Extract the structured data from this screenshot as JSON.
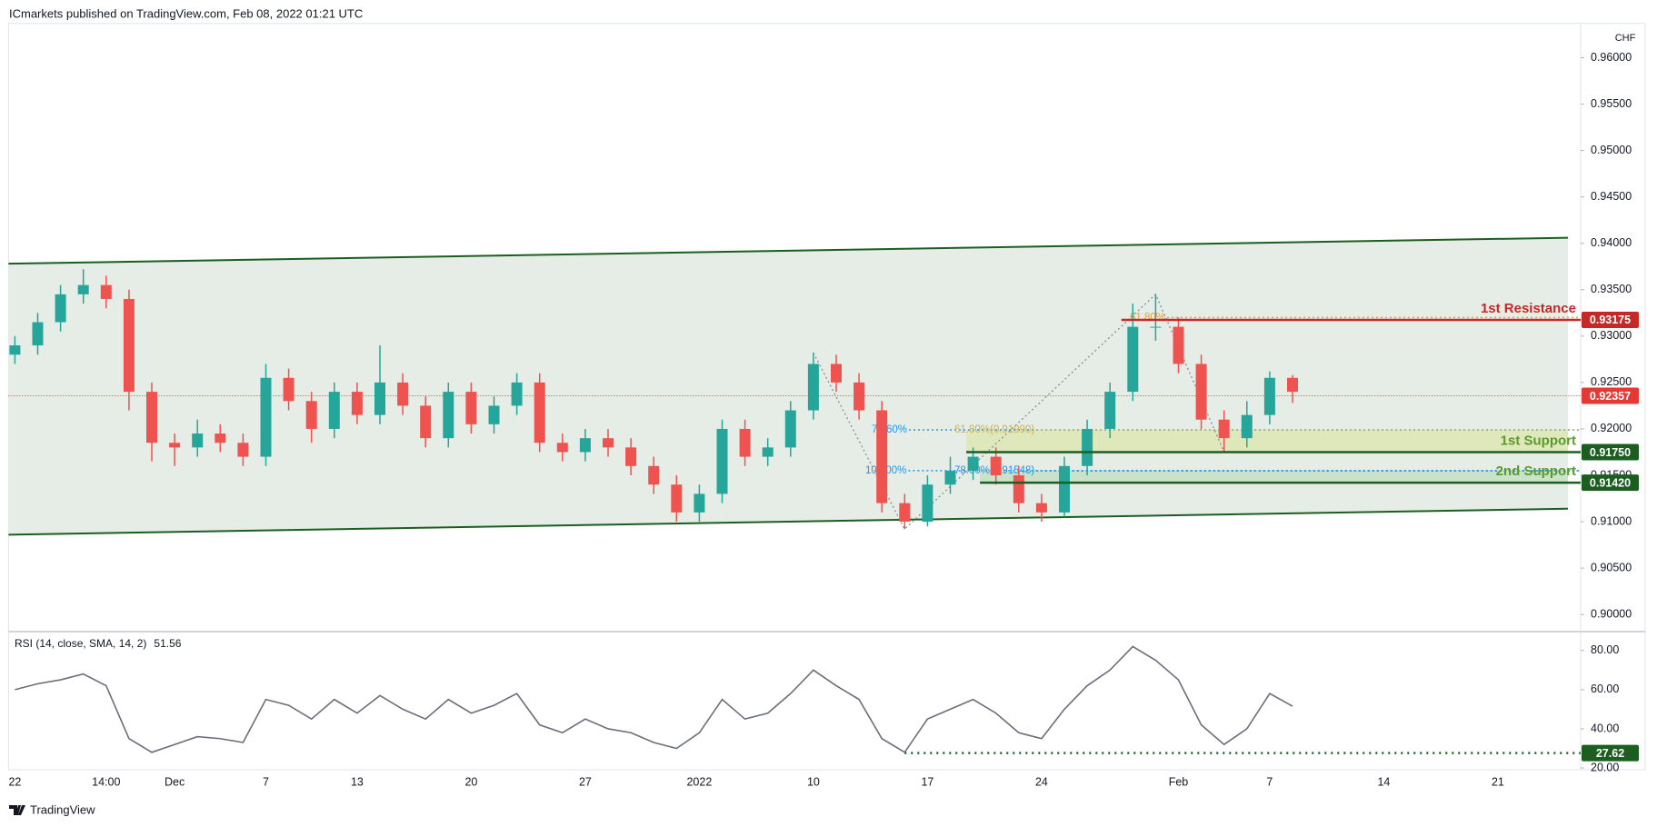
{
  "header": "ICmarkets published on TradingView.com, Feb 08, 2022 01:21 UTC",
  "footer": "TradingView",
  "chart_data": [
    {
      "type": "candlestick",
      "axis_unit": "CHF",
      "categories": [
        "22",
        null,
        null,
        null,
        "14:00",
        null,
        null,
        "Dec",
        null,
        null,
        null,
        "7",
        null,
        null,
        null,
        "13",
        null,
        null,
        null,
        null,
        "20",
        null,
        null,
        null,
        null,
        "27",
        null,
        null,
        null,
        null,
        "2022",
        null,
        null,
        null,
        null,
        "10",
        null,
        null,
        null,
        null,
        "17",
        null,
        null,
        null,
        null,
        "24",
        null,
        null,
        null,
        null,
        null,
        "Feb",
        null,
        null,
        null,
        "7",
        null,
        null,
        null,
        null,
        "14",
        null,
        null,
        null,
        null,
        "21",
        null,
        null
      ],
      "open": [
        0.928,
        0.929,
        0.9315,
        0.9345,
        0.9355,
        0.934,
        0.924,
        0.9185,
        0.918,
        0.9195,
        0.9185,
        0.917,
        0.9255,
        0.923,
        0.92,
        0.924,
        0.9215,
        0.925,
        0.9225,
        0.919,
        0.924,
        0.9205,
        0.9225,
        0.925,
        0.9185,
        0.9175,
        0.919,
        0.918,
        0.916,
        0.914,
        0.911,
        0.913,
        0.92,
        0.917,
        0.918,
        0.922,
        0.927,
        0.925,
        0.922,
        0.912,
        0.91,
        0.914,
        0.9155,
        0.917,
        0.915,
        0.912,
        0.911,
        0.916,
        0.92,
        0.924,
        0.931,
        0.931,
        0.927,
        0.921,
        0.919,
        0.9215,
        0.9255,
        null,
        null,
        null,
        null,
        null,
        null,
        null,
        null,
        null,
        null,
        null
      ],
      "high": [
        0.93,
        0.9325,
        0.9355,
        0.9372,
        0.9365,
        0.935,
        0.925,
        0.9195,
        0.921,
        0.9205,
        0.9195,
        0.927,
        0.9265,
        0.924,
        0.925,
        0.925,
        0.929,
        0.926,
        0.9235,
        0.925,
        0.925,
        0.9235,
        0.926,
        0.926,
        0.9195,
        0.92,
        0.92,
        0.919,
        0.917,
        0.915,
        0.914,
        0.921,
        0.921,
        0.919,
        0.923,
        0.9282,
        0.928,
        0.926,
        0.923,
        0.913,
        0.915,
        0.917,
        0.918,
        0.918,
        0.916,
        0.913,
        0.917,
        0.921,
        0.925,
        0.9335,
        0.9345,
        0.932,
        0.928,
        0.922,
        0.923,
        0.9262,
        0.9258,
        null,
        null,
        null,
        null,
        null,
        null,
        null,
        null,
        null,
        null,
        null
      ],
      "low": [
        0.927,
        0.928,
        0.9305,
        0.9335,
        0.933,
        0.922,
        0.9165,
        0.916,
        0.917,
        0.9175,
        0.916,
        0.916,
        0.922,
        0.9185,
        0.919,
        0.9205,
        0.9205,
        0.9215,
        0.918,
        0.918,
        0.9195,
        0.9195,
        0.9215,
        0.9175,
        0.9165,
        0.9165,
        0.917,
        0.915,
        0.913,
        0.91,
        0.91,
        0.912,
        0.916,
        0.916,
        0.917,
        0.921,
        0.924,
        0.921,
        0.911,
        0.9092,
        0.9095,
        0.913,
        0.9145,
        0.914,
        0.911,
        0.91,
        0.9105,
        0.915,
        0.919,
        0.923,
        0.9295,
        0.926,
        0.92,
        0.9175,
        0.918,
        0.9205,
        0.9228,
        null,
        null,
        null,
        null,
        null,
        null,
        null,
        null,
        null,
        null,
        null
      ],
      "close": [
        0.929,
        0.9315,
        0.9345,
        0.9355,
        0.934,
        0.924,
        0.9185,
        0.918,
        0.9195,
        0.9185,
        0.917,
        0.9255,
        0.923,
        0.92,
        0.924,
        0.9215,
        0.925,
        0.9225,
        0.919,
        0.924,
        0.9205,
        0.9225,
        0.925,
        0.9185,
        0.9175,
        0.919,
        0.918,
        0.916,
        0.914,
        0.911,
        0.913,
        0.92,
        0.917,
        0.918,
        0.922,
        0.927,
        0.925,
        0.922,
        0.912,
        0.91,
        0.914,
        0.9155,
        0.917,
        0.915,
        0.912,
        0.911,
        0.916,
        0.92,
        0.924,
        0.931,
        0.931,
        0.927,
        0.921,
        0.919,
        0.9215,
        0.9255,
        0.924,
        null,
        null,
        null,
        null,
        null,
        null,
        null,
        null,
        null,
        null,
        null
      ],
      "up_color": "#26a69a",
      "down_color": "#ef5350",
      "ylim": [
        0.8984,
        0.9637
      ],
      "yticks": [
        {
          "value": 0.9,
          "label": "0.90000"
        },
        {
          "value": 0.905,
          "label": "0.90500"
        },
        {
          "value": 0.91,
          "label": "0.91000"
        },
        {
          "value": 0.915,
          "label": "0.91500"
        },
        {
          "value": 0.92,
          "label": "0.92000"
        },
        {
          "value": 0.925,
          "label": "0.92500"
        },
        {
          "value": 0.93,
          "label": "0.93000"
        },
        {
          "value": 0.935,
          "label": "0.93500"
        },
        {
          "value": 0.94,
          "label": "0.94000"
        },
        {
          "value": 0.945,
          "label": "0.94500"
        },
        {
          "value": 0.95,
          "label": "0.95000"
        },
        {
          "value": 0.955,
          "label": "0.95500"
        },
        {
          "value": 0.96,
          "label": "0.96000"
        }
      ],
      "channel": {
        "upper": [
          0.9378,
          0.9406
        ],
        "lower": [
          0.9086,
          0.9114
        ],
        "color": "#1b5e20",
        "fill": "#e6ece6"
      },
      "levels": [
        {
          "name": "1st Resistance",
          "value": 0.93175,
          "color": "#c62828"
        },
        {
          "name": "1st Support",
          "value": 0.9175,
          "value_label": "0.91750",
          "color": "#1b5e20"
        },
        {
          "name": "2nd Support",
          "value": 0.9142,
          "value_label": "0.91420",
          "color": "#1b5e20"
        }
      ],
      "last_price": {
        "value": 0.92357,
        "color": "#e53935"
      },
      "fib": [
        {
          "label": "78.60%",
          "value": 0.9199,
          "color": "#2196f3"
        },
        {
          "label": "61.80%(0.91990)",
          "value": 0.9199,
          "color": "#c9b458"
        },
        {
          "label": "100.00%",
          "value": 0.9155,
          "color": "#2196f3"
        },
        {
          "label": "78.60%(0.91548)",
          "value": 0.91548,
          "color": "#2196f3"
        },
        {
          "label": "61.80%",
          "value": 0.932,
          "color": "#e6a23c"
        }
      ]
    },
    {
      "type": "line",
      "title": "RSI (14, close, SMA, 14, 2)",
      "last_value": 51.56,
      "values": [
        60,
        63,
        65,
        68,
        62,
        35,
        28,
        32,
        36,
        35,
        33,
        55,
        52,
        45,
        55,
        48,
        57,
        50,
        45,
        55,
        48,
        52,
        58,
        42,
        38,
        45,
        40,
        38,
        33,
        30,
        38,
        55,
        45,
        48,
        58,
        70,
        62,
        55,
        35,
        28,
        45,
        50,
        55,
        48,
        38,
        35,
        50,
        62,
        70,
        82,
        75,
        65,
        42,
        32,
        40,
        58,
        51.56,
        null,
        null,
        null,
        null,
        null,
        null,
        null,
        null,
        null,
        null,
        null
      ],
      "color": "#6b6e7a",
      "ylim": [
        19.1,
        88.7
      ],
      "yticks": [
        {
          "value": 20,
          "label": "20.00"
        },
        {
          "value": 40,
          "label": "40.00"
        },
        {
          "value": 60,
          "label": "60.00"
        },
        {
          "value": 80,
          "label": "80.00"
        }
      ],
      "level": {
        "value": 27.62,
        "color": "#1b5e20"
      }
    }
  ]
}
